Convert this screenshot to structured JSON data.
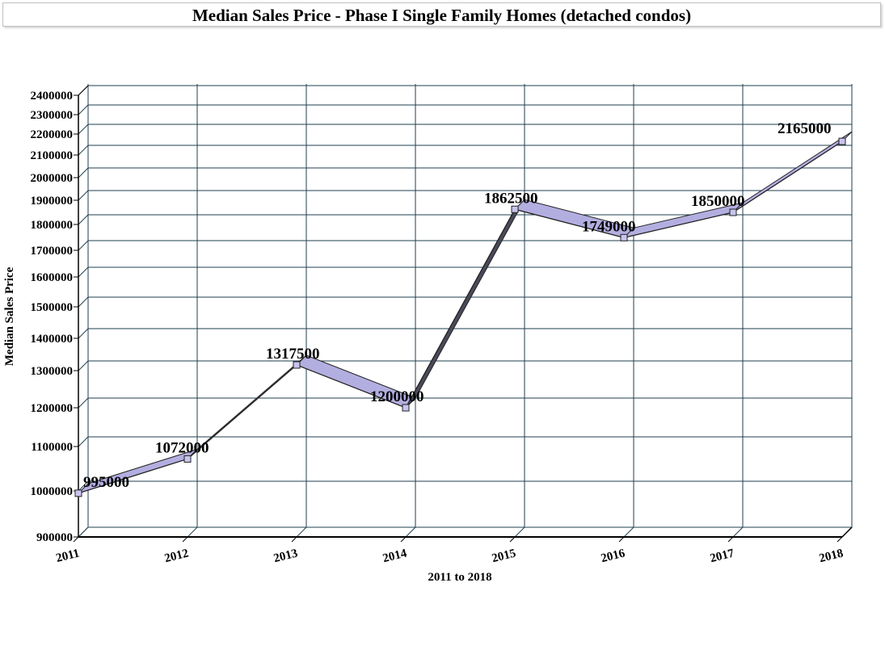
{
  "chart_data": {
    "type": "line",
    "title": "Median Sales Price  - Phase I Single Family Homes (detached condos)",
    "xlabel": "2011 to 2018",
    "ylabel": "Median Sales Price",
    "categories": [
      "2011",
      "2012",
      "2013",
      "2014",
      "2015",
      "2016",
      "2017",
      "2018"
    ],
    "series": [
      {
        "values": [
          995000,
          1072000,
          1317500,
          1200000,
          1862500,
          1749000,
          1850000,
          2165000
        ]
      }
    ],
    "data_labels": [
      "995000",
      "1072000",
      "1317500",
      "1200000",
      "1862500",
      "1749000",
      "1850000",
      "2165000"
    ],
    "yticks": [
      "900000",
      "1000000",
      "1100000",
      "1200000",
      "1300000",
      "1400000",
      "1500000",
      "1600000",
      "1700000",
      "1800000",
      "1900000",
      "2000000",
      "2100000",
      "2200000",
      "2300000",
      "2400000"
    ],
    "ylim": [
      900000,
      2400000
    ],
    "grid": true,
    "legend": "none",
    "colors": {
      "ribbon_fill": "#b3aee0",
      "ribbon_dark": "#4a4a5a",
      "grid": "#1f3f4f",
      "marker": "#c8c4ee"
    }
  }
}
